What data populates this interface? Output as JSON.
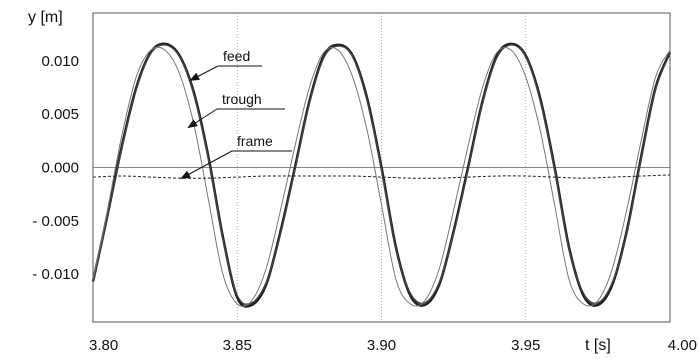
{
  "chart_data": {
    "type": "line",
    "title": "",
    "xlabel": "t [s]",
    "ylabel": "y [m]",
    "xlim": [
      3.8,
      4.0
    ],
    "ylim": [
      -0.0145,
      0.0145
    ],
    "x_ticks": [
      3.8,
      3.85,
      3.9,
      3.95,
      4.0
    ],
    "x_tick_labels": [
      "3.80",
      "3.85",
      "3.90",
      "3.95",
      "4.00"
    ],
    "y_ticks": [
      0.01,
      0.005,
      0.0,
      -0.005,
      -0.01
    ],
    "y_tick_labels": [
      "0.010",
      "0.005",
      "0.000",
      "- 0.005",
      "- 0.010"
    ],
    "grid": {
      "vertical": [
        3.85,
        3.9,
        3.95
      ],
      "horizontal": [],
      "zero_line": true
    },
    "legend": "none",
    "annotations": [
      {
        "text": "feed",
        "points_to_series": "feed"
      },
      {
        "text": "trough",
        "points_to_series": "trough"
      },
      {
        "text": "frame",
        "points_to_series": "frame"
      }
    ],
    "series": [
      {
        "name": "feed",
        "style": "solid-bold",
        "color": "#222222",
        "x": [
          3.8,
          3.805,
          3.81,
          3.815,
          3.82,
          3.825,
          3.83,
          3.835,
          3.84,
          3.845,
          3.85,
          3.855,
          3.86,
          3.865,
          3.87,
          3.875,
          3.88,
          3.885,
          3.89,
          3.895,
          3.9,
          3.905,
          3.91,
          3.915,
          3.92,
          3.925,
          3.93,
          3.935,
          3.94,
          3.945,
          3.95,
          3.955,
          3.96,
          3.965,
          3.97,
          3.975,
          3.98,
          3.985,
          3.99,
          3.995,
          4.0
        ],
        "y": [
          -0.0107,
          -0.0045,
          0.002,
          0.0075,
          0.0108,
          0.0116,
          0.0105,
          0.007,
          0.001,
          -0.0065,
          -0.0122,
          -0.0129,
          -0.011,
          -0.006,
          0.0,
          0.0062,
          0.0105,
          0.0115,
          0.0105,
          0.0065,
          0.0,
          -0.0075,
          -0.012,
          -0.0129,
          -0.011,
          -0.006,
          0.0,
          0.0062,
          0.0105,
          0.0116,
          0.0105,
          0.0065,
          0.0,
          -0.0075,
          -0.012,
          -0.0129,
          -0.011,
          -0.006,
          0.001,
          0.0075,
          0.0108
        ]
      },
      {
        "name": "trough",
        "style": "solid",
        "color": "#444444",
        "x": [
          3.8,
          3.805,
          3.81,
          3.815,
          3.82,
          3.825,
          3.83,
          3.835,
          3.84,
          3.845,
          3.85,
          3.855,
          3.86,
          3.865,
          3.87,
          3.875,
          3.88,
          3.885,
          3.89,
          3.895,
          3.9,
          3.905,
          3.91,
          3.915,
          3.92,
          3.925,
          3.93,
          3.935,
          3.94,
          3.945,
          3.95,
          3.955,
          3.96,
          3.965,
          3.97,
          3.975,
          3.98,
          3.985,
          3.99,
          3.995,
          4.0
        ],
        "y": [
          -0.0107,
          -0.0046,
          0.0018,
          0.0073,
          0.0107,
          0.0115,
          0.0104,
          0.0068,
          0.0008,
          -0.0067,
          -0.012,
          -0.0127,
          -0.0108,
          -0.0062,
          -0.0002,
          0.006,
          0.0103,
          0.0114,
          0.0104,
          0.0063,
          -0.0002,
          -0.0077,
          -0.0118,
          -0.0127,
          -0.0108,
          -0.0062,
          -0.0002,
          0.006,
          0.0103,
          0.0115,
          0.0104,
          0.0063,
          -0.0002,
          -0.0077,
          -0.0118,
          -0.0127,
          -0.0108,
          -0.0062,
          0.0008,
          0.0073,
          0.0107
        ]
      },
      {
        "name": "",
        "style": "solid-thin",
        "color": "#777777",
        "x": [
          3.8,
          3.805,
          3.81,
          3.815,
          3.82,
          3.825,
          3.83,
          3.835,
          3.84,
          3.845,
          3.85,
          3.855,
          3.86,
          3.865,
          3.87,
          3.875,
          3.88,
          3.885,
          3.89,
          3.895,
          3.9,
          3.905,
          3.91,
          3.915,
          3.92,
          3.925,
          3.93,
          3.935,
          3.94,
          3.945,
          3.95,
          3.955,
          3.96,
          3.965,
          3.97,
          3.975,
          3.98,
          3.985,
          3.99,
          3.995,
          4.0
        ],
        "y": [
          -0.0105,
          -0.004,
          0.003,
          0.0085,
          0.011,
          0.011,
          0.0088,
          0.004,
          -0.003,
          -0.01,
          -0.0128,
          -0.0125,
          -0.0095,
          -0.004,
          0.002,
          0.0075,
          0.0108,
          0.011,
          0.0085,
          0.0035,
          -0.0035,
          -0.0105,
          -0.0128,
          -0.0125,
          -0.0095,
          -0.004,
          0.002,
          0.0075,
          0.0108,
          0.011,
          0.0085,
          0.0035,
          -0.0035,
          -0.0105,
          -0.0128,
          -0.0125,
          -0.0095,
          -0.004,
          0.0025,
          0.0085,
          0.011
        ]
      },
      {
        "name": "frame",
        "style": "dashed",
        "color": "#222222",
        "x": [
          3.8,
          3.81,
          3.82,
          3.83,
          3.84,
          3.85,
          3.86,
          3.87,
          3.88,
          3.89,
          3.9,
          3.91,
          3.92,
          3.93,
          3.94,
          3.95,
          3.96,
          3.97,
          3.98,
          3.99,
          4.0
        ],
        "y": [
          -0.0009,
          -0.0008,
          -0.0009,
          -0.001,
          -0.001,
          -0.0009,
          -0.0008,
          -0.0008,
          -0.0008,
          -0.0008,
          -0.0009,
          -0.001,
          -0.001,
          -0.0009,
          -0.0008,
          -0.0008,
          -0.0009,
          -0.001,
          -0.0009,
          -0.0008,
          -0.0007
        ]
      }
    ]
  }
}
